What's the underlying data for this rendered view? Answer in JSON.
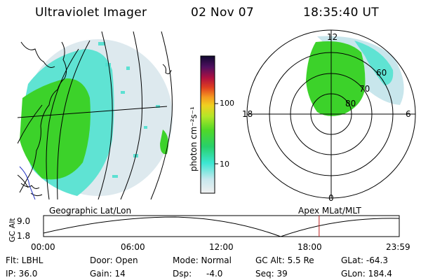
{
  "header": {
    "title": "Ultraviolet Imager",
    "date": "02 Nov 07",
    "time": "18:35:40 UT"
  },
  "colorbar": {
    "label": "photon cm⁻²s⁻¹",
    "ticks": [
      "100",
      "10"
    ]
  },
  "polar_plot": {
    "mlt_labels": {
      "top": "12",
      "left": "18",
      "right": "6",
      "bottom": "0"
    },
    "lat_labels": [
      "60",
      "70",
      "80"
    ]
  },
  "timeline": {
    "left_title": "Geographic Lat/Lon",
    "right_title": "Apex MLat/MLT",
    "ylabel": "GC Alt",
    "y_ticks": [
      "9.0",
      "1.8"
    ],
    "x_ticks": [
      "00:00",
      "06:00",
      "12:00",
      "18:00",
      "23:59"
    ],
    "current_time_fraction": 0.7748
  },
  "status": {
    "row1": [
      "Flt: LBHL",
      "Door: Open",
      "Mode: Normal",
      "GC Alt: 5.5 Re",
      "GLat: -64.3"
    ],
    "row2": [
      "IP: 36.0",
      "Gain: 14",
      "Dsp:",
      "-4.0",
      "Seq: 39",
      "GLon: 184.4"
    ]
  },
  "colors": {
    "green": "#3cd22a",
    "cyan": "#3ce6d2",
    "pale": "#c8e6ec",
    "marker": "#c02020"
  }
}
